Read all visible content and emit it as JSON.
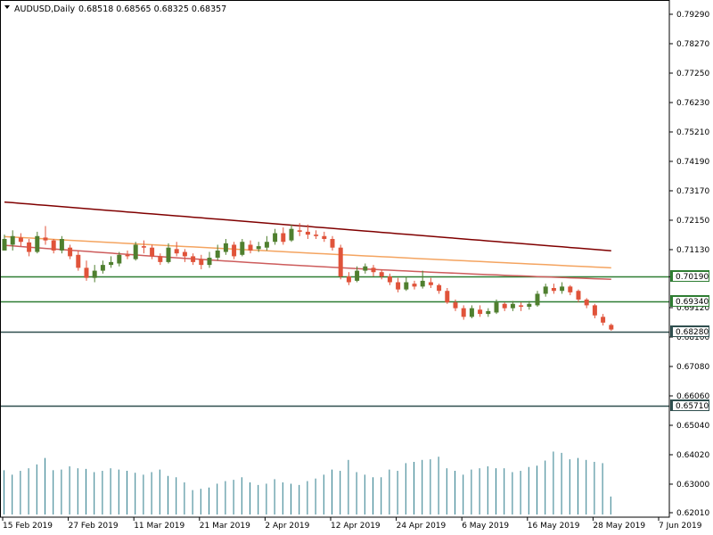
{
  "header": {
    "symbol": "AUDUSD,Daily",
    "ohlc": "0.68518 0.68565 0.68325 0.68357"
  },
  "chart_data": {
    "type": "candlestick",
    "symbol": "AUDUSD",
    "timeframe": "Daily",
    "ylim": [
      0.6172,
      0.7981
    ],
    "y_ticks": [
      "0.79290",
      "0.78270",
      "0.77250",
      "0.76230",
      "0.75210",
      "0.74190",
      "0.73170",
      "0.72150",
      "0.71130",
      "0.70190",
      "0.69120",
      "0.68100",
      "0.67080",
      "0.66060",
      "0.65040",
      "0.64020",
      "0.63000",
      "0.62010"
    ],
    "x_tick_labels": [
      {
        "label": "15 Feb 2019",
        "index": 0
      },
      {
        "label": "27 Feb 2019",
        "index": 8
      },
      {
        "label": "11 Mar 2019",
        "index": 16
      },
      {
        "label": "21 Mar 2019",
        "index": 24
      },
      {
        "label": "2 Apr 2019",
        "index": 32
      },
      {
        "label": "12 Apr 2019",
        "index": 40
      },
      {
        "label": "24 Apr 2019",
        "index": 48
      },
      {
        "label": "6 May 2019",
        "index": 56
      },
      {
        "label": "16 May 2019",
        "index": 64
      },
      {
        "label": "28 May 2019",
        "index": 72
      },
      {
        "label": "7 Jun 2019",
        "index": 80
      }
    ],
    "candles": [
      [
        0.711,
        0.715,
        0.7125,
        0.7165
      ],
      [
        0.713,
        0.716,
        0.711,
        0.718
      ],
      [
        0.7155,
        0.714,
        0.7125,
        0.717
      ],
      [
        0.7138,
        0.7105,
        0.709,
        0.715
      ],
      [
        0.7105,
        0.716,
        0.71,
        0.7175
      ],
      [
        0.7155,
        0.7145,
        0.713,
        0.7195
      ],
      [
        0.7145,
        0.711,
        0.71,
        0.715
      ],
      [
        0.711,
        0.715,
        0.71,
        0.716
      ],
      [
        0.712,
        0.709,
        0.708,
        0.713
      ],
      [
        0.7095,
        0.705,
        0.704,
        0.711
      ],
      [
        0.705,
        0.7015,
        0.7005,
        0.7075
      ],
      [
        0.7015,
        0.704,
        0.7,
        0.706
      ],
      [
        0.704,
        0.706,
        0.703,
        0.7075
      ],
      [
        0.706,
        0.707,
        0.705,
        0.709
      ],
      [
        0.7065,
        0.7095,
        0.7055,
        0.7105
      ],
      [
        0.7095,
        0.709,
        0.708,
        0.711
      ],
      [
        0.708,
        0.713,
        0.7075,
        0.714
      ],
      [
        0.7125,
        0.712,
        0.71,
        0.7145
      ],
      [
        0.712,
        0.709,
        0.708,
        0.713
      ],
      [
        0.709,
        0.707,
        0.706,
        0.71
      ],
      [
        0.707,
        0.712,
        0.7065,
        0.7135
      ],
      [
        0.7115,
        0.71,
        0.709,
        0.714
      ],
      [
        0.7105,
        0.709,
        0.707,
        0.7115
      ],
      [
        0.709,
        0.707,
        0.706,
        0.71
      ],
      [
        0.708,
        0.706,
        0.7045,
        0.7095
      ],
      [
        0.706,
        0.7085,
        0.705,
        0.7105
      ],
      [
        0.7085,
        0.711,
        0.7075,
        0.713
      ],
      [
        0.7105,
        0.7135,
        0.7095,
        0.715
      ],
      [
        0.713,
        0.709,
        0.708,
        0.714
      ],
      [
        0.7095,
        0.714,
        0.709,
        0.715
      ],
      [
        0.713,
        0.711,
        0.71,
        0.7145
      ],
      [
        0.7115,
        0.7125,
        0.7105,
        0.714
      ],
      [
        0.712,
        0.714,
        0.711,
        0.716
      ],
      [
        0.714,
        0.717,
        0.713,
        0.7185
      ],
      [
        0.717,
        0.714,
        0.713,
        0.719
      ],
      [
        0.7145,
        0.7185,
        0.714,
        0.72
      ],
      [
        0.718,
        0.7175,
        0.716,
        0.7205
      ],
      [
        0.7175,
        0.7165,
        0.715,
        0.72
      ],
      [
        0.7165,
        0.716,
        0.715,
        0.718
      ],
      [
        0.716,
        0.715,
        0.714,
        0.7175
      ],
      [
        0.715,
        0.712,
        0.711,
        0.716
      ],
      [
        0.712,
        0.702,
        0.701,
        0.713
      ],
      [
        0.702,
        0.7,
        0.699,
        0.7035
      ],
      [
        0.7005,
        0.704,
        0.7,
        0.7055
      ],
      [
        0.704,
        0.7055,
        0.703,
        0.7065
      ],
      [
        0.705,
        0.7035,
        0.702,
        0.706
      ],
      [
        0.7035,
        0.702,
        0.701,
        0.7045
      ],
      [
        0.702,
        0.7,
        0.699,
        0.703
      ],
      [
        0.7,
        0.6975,
        0.6965,
        0.7015
      ],
      [
        0.6975,
        0.7,
        0.697,
        0.702
      ],
      [
        0.6995,
        0.6985,
        0.6975,
        0.7005
      ],
      [
        0.6985,
        0.7005,
        0.6978,
        0.704
      ],
      [
        0.7,
        0.699,
        0.698,
        0.7015
      ],
      [
        0.699,
        0.697,
        0.696,
        0.6995
      ],
      [
        0.697,
        0.693,
        0.6925,
        0.698
      ],
      [
        0.693,
        0.691,
        0.69,
        0.694
      ],
      [
        0.691,
        0.688,
        0.687,
        0.692
      ],
      [
        0.688,
        0.691,
        0.6875,
        0.692
      ],
      [
        0.6905,
        0.689,
        0.688,
        0.692
      ],
      [
        0.689,
        0.69,
        0.688,
        0.691
      ],
      [
        0.6895,
        0.693,
        0.689,
        0.694
      ],
      [
        0.6925,
        0.691,
        0.69,
        0.693
      ],
      [
        0.691,
        0.6925,
        0.69,
        0.6935
      ],
      [
        0.692,
        0.6915,
        0.69,
        0.693
      ],
      [
        0.6915,
        0.6925,
        0.6905,
        0.6935
      ],
      [
        0.692,
        0.696,
        0.6915,
        0.697
      ],
      [
        0.696,
        0.6985,
        0.695,
        0.6995
      ],
      [
        0.698,
        0.697,
        0.696,
        0.6995
      ],
      [
        0.697,
        0.6985,
        0.696,
        0.7
      ],
      [
        0.6985,
        0.6965,
        0.6955,
        0.699
      ],
      [
        0.697,
        0.694,
        0.693,
        0.6975
      ],
      [
        0.694,
        0.692,
        0.691,
        0.6945
      ],
      [
        0.692,
        0.6885,
        0.6875,
        0.6925
      ],
      [
        0.688,
        0.686,
        0.685,
        0.689
      ],
      [
        0.6852,
        0.6836,
        0.6832,
        0.6857
      ]
    ],
    "moving_averages": [
      {
        "color": "#800000",
        "from": 0.7278,
        "to": 0.7109,
        "sag": 0.0
      },
      {
        "color": "#f4a460",
        "from": 0.7158,
        "to": 0.705,
        "sag": 0.0005
      },
      {
        "color": "#cd5c5c",
        "from": 0.7128,
        "to": 0.701,
        "sag": 0.0025
      }
    ],
    "volume": [
      0.69,
      0.62,
      0.68,
      0.72,
      0.78,
      0.88,
      0.69,
      0.7,
      0.75,
      0.72,
      0.71,
      0.66,
      0.68,
      0.72,
      0.7,
      0.68,
      0.65,
      0.62,
      0.66,
      0.7,
      0.6,
      0.58,
      0.5,
      0.38,
      0.4,
      0.42,
      0.48,
      0.52,
      0.54,
      0.58,
      0.5,
      0.46,
      0.48,
      0.55,
      0.5,
      0.48,
      0.46,
      0.52,
      0.56,
      0.62,
      0.7,
      0.68,
      0.85,
      0.66,
      0.62,
      0.58,
      0.58,
      0.7,
      0.68,
      0.8,
      0.82,
      0.85,
      0.86,
      0.9,
      0.72,
      0.68,
      0.62,
      0.7,
      0.72,
      0.75,
      0.72,
      0.72,
      0.66,
      0.68,
      0.74,
      0.76,
      0.84,
      0.98,
      0.96,
      0.86,
      0.88,
      0.85,
      0.82,
      0.8,
      0.28
    ],
    "levels": [
      {
        "price": "0.70190",
        "value": 0.7019,
        "color": "#2e7d32",
        "tag_bg": "#2e7d32"
      },
      {
        "price": "0.69340",
        "value": 0.6934,
        "color": "#2e7d32",
        "tag_bg": "#2e7d32"
      },
      {
        "price": "0.68280",
        "value": 0.6828,
        "color": "#2f4f4f",
        "tag_bg": "#2f4f4f"
      },
      {
        "price": "0.65710",
        "value": 0.6571,
        "color": "#2f4f4f",
        "tag_bg": "#2f4f4f"
      }
    ],
    "colors": {
      "bull": "#4f7f2f",
      "bear": "#e0533a",
      "volume": "#2e7d8c",
      "axis": "#000000",
      "background": "#ffffff"
    },
    "grid": false
  }
}
